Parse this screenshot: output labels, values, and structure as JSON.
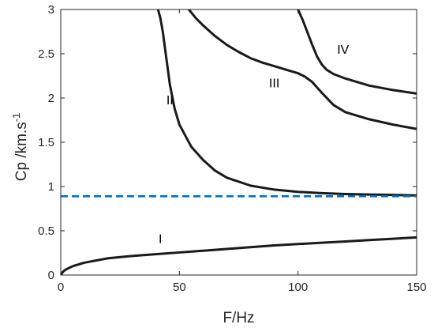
{
  "chart_data": {
    "type": "line",
    "xlabel": "F/Hz",
    "ylabel": "Cp /km.s",
    "ylabel_superscript": "-1",
    "xlim": [
      0,
      150
    ],
    "ylim": [
      0,
      3
    ],
    "xticks": [
      0,
      50,
      100,
      150
    ],
    "yticks": [
      0,
      0.5,
      1,
      1.5,
      2,
      2.5,
      3
    ],
    "xtick_labels": [
      "0",
      "50",
      "100",
      "150"
    ],
    "ytick_labels": [
      "0",
      "0.5",
      "1",
      "1.5",
      "2",
      "2.5",
      "3"
    ],
    "grid": false,
    "series": [
      {
        "name": "I",
        "color": "#1a1a1a",
        "style": "solid",
        "x": [
          0,
          1,
          2,
          5,
          10,
          20,
          30,
          40,
          50,
          60,
          70,
          80,
          90,
          100,
          110,
          120,
          130,
          140,
          150
        ],
        "y": [
          0,
          0.04,
          0.06,
          0.1,
          0.14,
          0.19,
          0.215,
          0.235,
          0.255,
          0.275,
          0.295,
          0.315,
          0.335,
          0.35,
          0.365,
          0.38,
          0.395,
          0.41,
          0.425
        ]
      },
      {
        "name": "II",
        "color": "#1a1a1a",
        "style": "solid",
        "x": [
          41,
          42,
          43,
          44,
          45,
          46,
          48,
          50,
          55,
          60,
          65,
          70,
          80,
          90,
          100,
          110,
          120,
          130,
          140,
          150
        ],
        "y": [
          3.0,
          2.9,
          2.75,
          2.55,
          2.35,
          2.15,
          1.88,
          1.7,
          1.45,
          1.3,
          1.18,
          1.1,
          1.01,
          0.965,
          0.94,
          0.925,
          0.915,
          0.91,
          0.905,
          0.9
        ]
      },
      {
        "name": "III",
        "color": "#1a1a1a",
        "style": "solid",
        "x": [
          54,
          57,
          60,
          65,
          70,
          75,
          80,
          85,
          90,
          95,
          100,
          103,
          106,
          110,
          115,
          120,
          130,
          140,
          150
        ],
        "y": [
          3.0,
          2.9,
          2.82,
          2.7,
          2.6,
          2.52,
          2.45,
          2.4,
          2.36,
          2.32,
          2.28,
          2.24,
          2.18,
          2.06,
          1.92,
          1.84,
          1.76,
          1.7,
          1.65
        ]
      },
      {
        "name": "IV",
        "color": "#1a1a1a",
        "style": "solid",
        "x": [
          100,
          102,
          104,
          106,
          108,
          110,
          112,
          115,
          118,
          120,
          125,
          130,
          140,
          150
        ],
        "y": [
          3.0,
          2.88,
          2.74,
          2.6,
          2.47,
          2.38,
          2.32,
          2.27,
          2.24,
          2.22,
          2.18,
          2.14,
          2.09,
          2.05
        ]
      },
      {
        "color": "#0072bd",
        "style": "dashed",
        "x": [
          0,
          150
        ],
        "y": [
          0.89,
          0.89
        ]
      }
    ],
    "annotations": [
      {
        "text": "I",
        "x": 42,
        "y": 0.36
      },
      {
        "text": "II",
        "x": 46,
        "y": 1.93
      },
      {
        "text": "III",
        "x": 90,
        "y": 2.12
      },
      {
        "text": "IV",
        "x": 119,
        "y": 2.5
      }
    ]
  }
}
